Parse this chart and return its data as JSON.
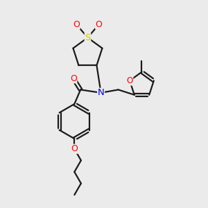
{
  "background_color": "#ebebeb",
  "bond_color": "#1a1a1a",
  "atom_colors": {
    "O": "#ff0000",
    "N": "#0000ee",
    "S": "#cccc00",
    "C": "#1a1a1a"
  },
  "line_width": 1.6,
  "font_size": 8.5,
  "figsize": [
    3.0,
    3.0
  ],
  "dpi": 100,
  "xlim": [
    0,
    10
  ],
  "ylim": [
    0,
    10
  ]
}
